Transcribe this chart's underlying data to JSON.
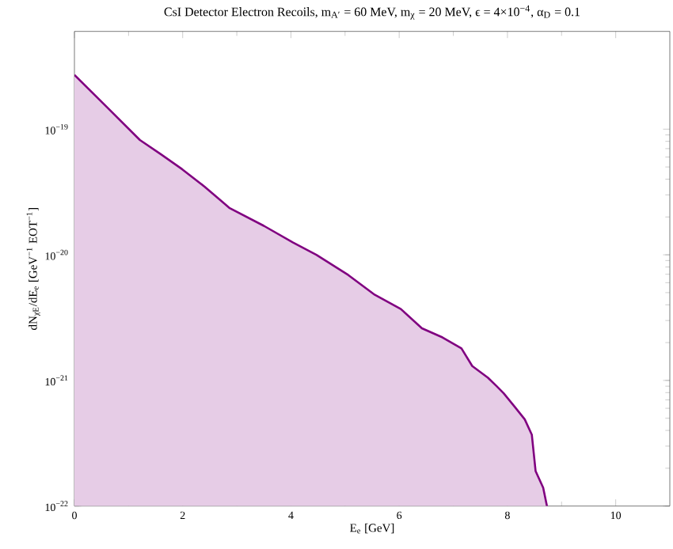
{
  "chart_data": {
    "type": "area",
    "title": "CsI Detector Electron Recoils,   m$_{A′}$ = 60 MeV,  m$_{χ}$ = 20 MeV, ϵ = 4×10$^{−4}$, α$_{D}$ = 0.1",
    "xlabel": "E$_{e}$ [GeV]",
    "ylabel": "dN$_{χE}$/dE$_{e}$  [GeV$^{−1}$ EOT$^{−1}$]",
    "log": "y",
    "grid": false,
    "xlim": [
      0,
      11
    ],
    "xticks": [
      0,
      2,
      4,
      6,
      8,
      10
    ],
    "ylim": [
      1e-22,
      6e-19
    ],
    "yticks": [
      {
        "value": 1e-22,
        "label": "10$^{−22}$"
      },
      {
        "value": 1e-21,
        "label": "10$^{−21}$"
      },
      {
        "value": 1e-20,
        "label": "10$^{−20}$"
      },
      {
        "value": 1e-19,
        "label": "10$^{−19}$"
      }
    ],
    "series": [
      {
        "color": "#800080",
        "x": [
          0,
          0.6,
          1.21,
          1.6,
          1.99,
          2.4,
          2.87,
          3.5,
          4.04,
          4.47,
          5.06,
          5.55,
          6.03,
          6.42,
          6.8,
          7.15,
          7.35,
          7.64,
          7.8,
          7.93,
          8.13,
          8.32,
          8.45,
          8.52,
          8.66,
          8.73
        ],
        "values": [
          2.7e-19,
          1.5e-19,
          8.2e-20,
          6.3e-20,
          4.8e-20,
          3.5e-20,
          2.35e-20,
          1.7e-20,
          1.25e-20,
          1e-20,
          6.9e-21,
          4.8e-21,
          3.7e-21,
          2.6e-21,
          2.2e-21,
          1.8e-21,
          1.3e-21,
          1.05e-21,
          9e-22,
          7.9e-22,
          6.2e-22,
          4.9e-22,
          3.7e-22,
          1.9e-22,
          1.4e-22,
          1e-22
        ]
      }
    ]
  }
}
